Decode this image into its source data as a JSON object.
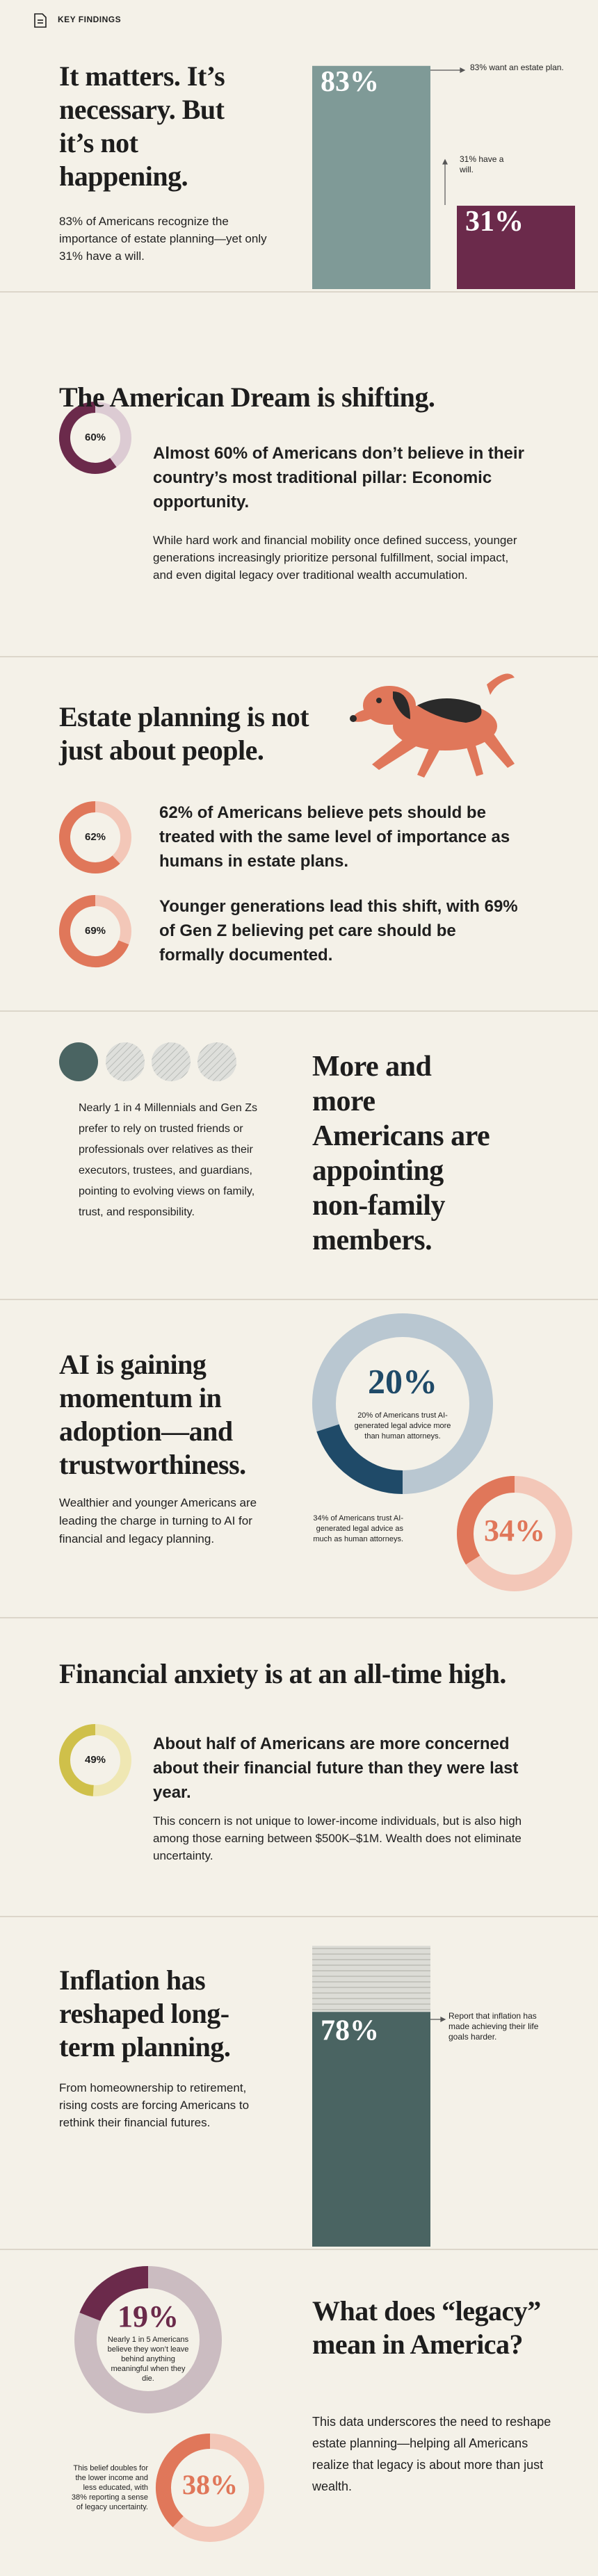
{
  "header": {
    "label": "KEY FINDINGS"
  },
  "s1": {
    "title": "It matters. It’s necessary. But it’s not happening.",
    "body": "83% of Americans recognize the importance of estate planning—yet only 31% have a will.",
    "bars": [
      {
        "value": 83,
        "label": "83%",
        "note": "83% want an estate plan.",
        "color": "#7f9a97"
      },
      {
        "value": 31,
        "label": "31%",
        "note": "31% have a will.",
        "color": "#6b2a4b"
      }
    ]
  },
  "s2": {
    "title": "The American Dream is shifting.",
    "stat": {
      "value": 60,
      "label": "60%",
      "color": "#6b2a4b"
    },
    "lead": "Almost 60% of Americans don’t believe in their country’s most traditional pillar: Economic opportunity.",
    "body": "While hard work and financial mobility once defined success, younger generations increasingly prioritize personal fulfillment, social impact, and even digital legacy over traditional wealth accumulation."
  },
  "s3": {
    "title": "Estate planning is not just about people.",
    "stats": [
      {
        "value": 62,
        "label": "62%",
        "color": "#e0775a",
        "text": "62% of Americans believe pets should be treated with the same level of importance as humans in estate plans."
      },
      {
        "value": 69,
        "label": "69%",
        "color": "#e0775a",
        "text": "Younger generations lead this shift, with 69% of Gen Z believing pet care should be formally documented."
      }
    ]
  },
  "s4": {
    "title": "More and more Americans are appointing non-family members.",
    "body": "Nearly 1 in 4 Millennials and Gen Zs prefer to rely on trusted friends or professionals over relatives as their executors, trustees, and guardians, pointing to evolving views on family, trust, and responsibility."
  },
  "s5": {
    "title": "AI is gaining momentum in adoption—and trustworthiness.",
    "body": "Wealthier and younger Americans are leading the charge in turning to AI for financial and legacy planning.",
    "stats": [
      {
        "value": 20,
        "label": "20%",
        "color": "#1f4a68",
        "note": "20% of Americans trust AI-generated legal advice more than human attorneys."
      },
      {
        "value": 34,
        "label": "34%",
        "color": "#e0775a",
        "note": "34% of Americans trust AI-generated legal advice as much as human attorneys."
      }
    ]
  },
  "s6": {
    "title": "Financial anxiety is at an all-time high.",
    "stat": {
      "value": 49,
      "label": "49%",
      "color": "#cfc04a"
    },
    "lead": "About half of Americans are more concerned about their financial future than they were last year.",
    "body": "This concern is not unique to lower-income individuals, but is also high among those earning between $500K–$1M. Wealth does not eliminate uncertainty."
  },
  "s7": {
    "title": "Inflation has reshaped long-term planning.",
    "body": "From homeownership to retirement, rising costs are forcing Americans to rethink their financial futures.",
    "bar": {
      "value": 78,
      "label": "78%",
      "color": "#4a6462",
      "note": "Report that inflation has made achieving their life goals harder."
    }
  },
  "s8": {
    "title": "What does “legacy” mean in America?",
    "body": "This data underscores the need to reshape estate planning—helping all Americans realize that legacy is about more than just wealth.",
    "stats": [
      {
        "value": 19,
        "label": "19%",
        "color": "#6b2a4b",
        "note": "Nearly 1 in 5 Americans believe they won’t leave behind anything meaningful when they die."
      },
      {
        "value": 38,
        "label": "38%",
        "color": "#e0775a",
        "note": "This belief doubles for the lower income and less educated, with 38% reporting a sense of legacy uncertainty."
      }
    ]
  }
}
